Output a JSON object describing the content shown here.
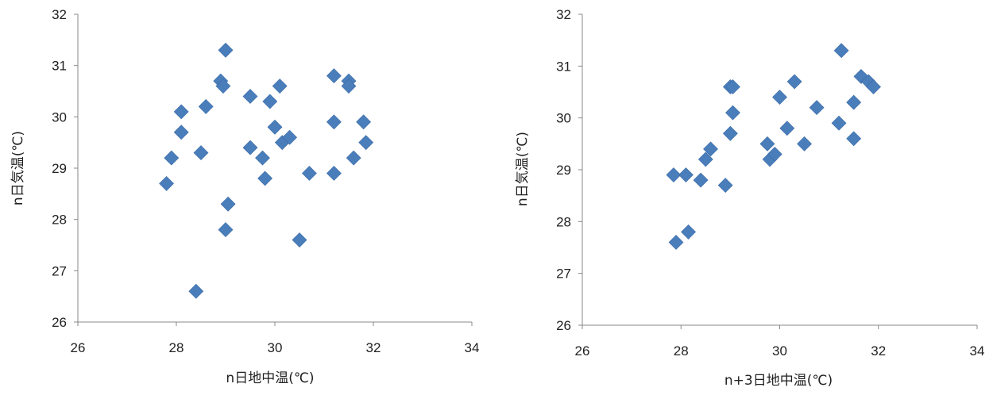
{
  "chart_data": [
    {
      "type": "scatter",
      "xlabel": "n日地中温(℃)",
      "ylabel": "n日気温(℃)",
      "xlim": [
        26,
        34
      ],
      "ylim": [
        26,
        32
      ],
      "xticks": [
        "26",
        "28",
        "30",
        "32",
        "34"
      ],
      "yticks": [
        "26",
        "27",
        "28",
        "29",
        "30",
        "31",
        "32"
      ],
      "grid": false,
      "legend": "none",
      "marker": "diamond",
      "color": "#4A7EBB",
      "points": [
        [
          27.8,
          28.7
        ],
        [
          27.9,
          29.2
        ],
        [
          28.1,
          30.1
        ],
        [
          28.1,
          29.7
        ],
        [
          28.4,
          26.6
        ],
        [
          28.5,
          29.3
        ],
        [
          28.6,
          30.2
        ],
        [
          28.9,
          30.7
        ],
        [
          28.95,
          30.6
        ],
        [
          29.0,
          31.3
        ],
        [
          29.0,
          27.8
        ],
        [
          29.05,
          28.3
        ],
        [
          29.5,
          30.4
        ],
        [
          29.5,
          29.4
        ],
        [
          29.75,
          29.2
        ],
        [
          29.8,
          28.8
        ],
        [
          29.9,
          30.3
        ],
        [
          30.0,
          29.8
        ],
        [
          30.1,
          30.6
        ],
        [
          30.15,
          29.5
        ],
        [
          30.3,
          29.6
        ],
        [
          30.5,
          27.6
        ],
        [
          30.7,
          28.9
        ],
        [
          31.2,
          30.8
        ],
        [
          31.2,
          29.9
        ],
        [
          31.2,
          28.9
        ],
        [
          31.5,
          30.7
        ],
        [
          31.5,
          30.6
        ],
        [
          31.6,
          29.2
        ],
        [
          31.8,
          29.9
        ],
        [
          31.85,
          29.5
        ]
      ]
    },
    {
      "type": "scatter",
      "xlabel": "n+3日地中温(℃)",
      "ylabel": "n日気温(℃)",
      "xlim": [
        26,
        34
      ],
      "ylim": [
        26,
        32
      ],
      "xticks": [
        "26",
        "28",
        "30",
        "32",
        "34"
      ],
      "yticks": [
        "26",
        "27",
        "28",
        "29",
        "30",
        "31",
        "32"
      ],
      "grid": false,
      "legend": "none",
      "marker": "diamond",
      "color": "#4A7EBB",
      "points": [
        [
          27.85,
          28.9
        ],
        [
          27.9,
          27.6
        ],
        [
          28.1,
          28.9
        ],
        [
          28.15,
          27.8
        ],
        [
          28.4,
          28.8
        ],
        [
          28.5,
          29.2
        ],
        [
          28.6,
          29.4
        ],
        [
          28.9,
          28.7
        ],
        [
          29.0,
          30.6
        ],
        [
          29.05,
          30.6
        ],
        [
          29.05,
          30.1
        ],
        [
          29.0,
          29.7
        ],
        [
          29.75,
          29.5
        ],
        [
          29.8,
          29.2
        ],
        [
          29.9,
          29.3
        ],
        [
          30.0,
          30.4
        ],
        [
          30.15,
          29.8
        ],
        [
          30.3,
          30.7
        ],
        [
          30.5,
          29.5
        ],
        [
          30.75,
          30.2
        ],
        [
          31.2,
          29.9
        ],
        [
          31.25,
          31.3
        ],
        [
          31.5,
          30.3
        ],
        [
          31.5,
          29.6
        ],
        [
          31.65,
          30.8
        ],
        [
          31.8,
          30.7
        ],
        [
          31.9,
          30.6
        ]
      ]
    }
  ]
}
